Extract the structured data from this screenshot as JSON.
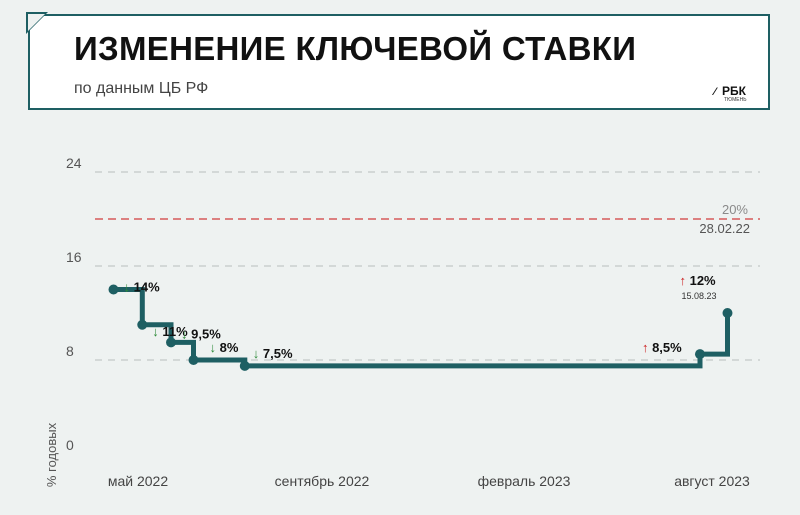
{
  "header": {
    "title": "ИЗМЕНЕНИЕ КЛЮЧЕВОЙ СТАВКИ",
    "subtitle": "по данным ЦБ РФ",
    "logo_text": "РБК",
    "logo_subtext": "ТЮМЕНЬ"
  },
  "colors": {
    "line": "#1e5f63",
    "reference": "#d23c3c",
    "grid": "#b8bfbd",
    "down_arrow": "#2e8b3a",
    "up_arrow": "#cc2222"
  },
  "chart_data": {
    "type": "line",
    "step": true,
    "ylabel": "% годовых",
    "ylim": [
      0,
      24
    ],
    "y_ticks": [
      0,
      8,
      16,
      24
    ],
    "x_tick_labels": [
      "май 2022",
      "сентябрь 2022",
      "февраль 2023",
      "август 2023"
    ],
    "series": [
      {
        "points": [
          {
            "date": "2022-04-11",
            "value": 14,
            "label": "↓ 14%",
            "direction": "down"
          },
          {
            "date": "2022-05-04",
            "value": 11,
            "label": "↓ 11%",
            "direction": "down"
          },
          {
            "date": "2022-05-27",
            "value": 9.5,
            "label": "↓ 9,5%",
            "direction": "down"
          },
          {
            "date": "2022-06-14",
            "value": 8,
            "label": "↓ 8%",
            "direction": "down"
          },
          {
            "date": "2022-07-25",
            "value": 7.5,
            "label": "↓ 7,5%",
            "direction": "down"
          },
          {
            "date": "2023-07-24",
            "value": 8.5,
            "label": "↑ 8,5%",
            "direction": "up"
          },
          {
            "date": "2023-08-15",
            "value": 12,
            "label": "↑ 12%",
            "sublabel": "15.08.23",
            "direction": "up"
          }
        ]
      }
    ],
    "reference": {
      "value": 20,
      "label": "20%",
      "date_label": "28.02.22"
    },
    "grid": true
  }
}
